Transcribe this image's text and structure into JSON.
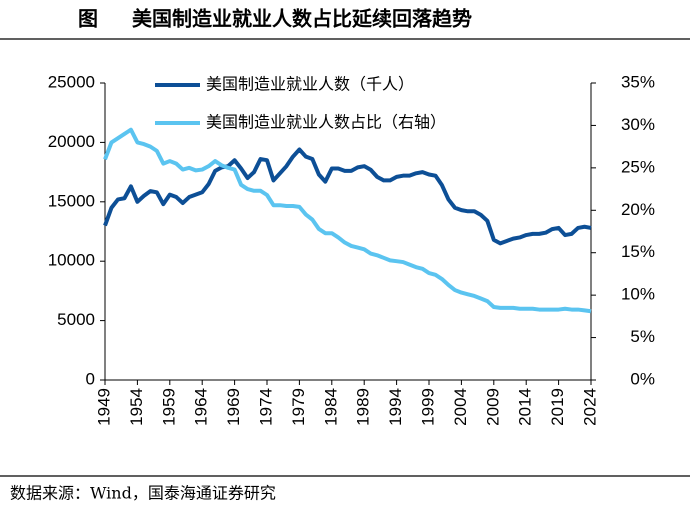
{
  "chart_data": {
    "type": "line",
    "figure_label": "图",
    "title": "美国制造业就业人数占比延续回落趋势",
    "source": "数据来源：Wind，国泰海通证券研究",
    "x": [
      1949,
      1950,
      1951,
      1952,
      1953,
      1954,
      1955,
      1956,
      1957,
      1958,
      1959,
      1960,
      1961,
      1962,
      1963,
      1964,
      1965,
      1966,
      1967,
      1968,
      1969,
      1970,
      1971,
      1972,
      1973,
      1974,
      1975,
      1976,
      1977,
      1978,
      1979,
      1980,
      1981,
      1982,
      1983,
      1984,
      1985,
      1986,
      1987,
      1988,
      1989,
      1990,
      1991,
      1992,
      1993,
      1994,
      1995,
      1996,
      1997,
      1998,
      1999,
      2000,
      2001,
      2002,
      2003,
      2004,
      2005,
      2006,
      2007,
      2008,
      2009,
      2010,
      2011,
      2012,
      2013,
      2014,
      2015,
      2016,
      2017,
      2018,
      2019,
      2020,
      2021,
      2022,
      2023,
      2024
    ],
    "xlim": [
      1949,
      2024
    ],
    "xticks": [
      1949,
      1954,
      1959,
      1964,
      1969,
      1974,
      1979,
      1984,
      1989,
      1994,
      1999,
      2004,
      2009,
      2014,
      2019,
      2024
    ],
    "ylim": [
      0,
      25000
    ],
    "yticks": [
      0,
      5000,
      10000,
      15000,
      20000,
      25000
    ],
    "y2lim": [
      0,
      35
    ],
    "y2ticks": [
      {
        "value": 0,
        "label": "0%"
      },
      {
        "value": 5,
        "label": "5%"
      },
      {
        "value": 10,
        "label": "10%"
      },
      {
        "value": 15,
        "label": "15%"
      },
      {
        "value": 20,
        "label": "20%"
      },
      {
        "value": 25,
        "label": "25%"
      },
      {
        "value": 30,
        "label": "30%"
      },
      {
        "value": 35,
        "label": "35%"
      }
    ],
    "legend": "upper-left",
    "series": [
      {
        "name": "美国制造业就业人数（千人）",
        "color": "#0d4f96",
        "values": [
          13000,
          14500,
          15200,
          15300,
          16300,
          15000,
          15500,
          15900,
          15800,
          14800,
          15600,
          15400,
          14900,
          15400,
          15600,
          15800,
          16500,
          17600,
          17900,
          18000,
          18500,
          17800,
          17000,
          17500,
          18600,
          18500,
          16800,
          17400,
          18000,
          18800,
          19400,
          18800,
          18600,
          17300,
          16700,
          17800,
          17800,
          17600,
          17600,
          17900,
          18000,
          17700,
          17100,
          16800,
          16800,
          17100,
          17200,
          17200,
          17400,
          17500,
          17300,
          17200,
          16400,
          15200,
          14500,
          14300,
          14200,
          14200,
          13900,
          13400,
          11800,
          11500,
          11700,
          11900,
          12000,
          12200,
          12300,
          12300,
          12400,
          12700,
          12800,
          12200,
          12300,
          12800,
          12900,
          12800
        ]
      },
      {
        "name": "美国制造业就业人数占比（右轴）",
        "color": "#5bc4f0",
        "axis": "y2",
        "values": [
          26,
          28,
          28.5,
          29,
          29.5,
          28,
          27.8,
          27.5,
          27,
          25.5,
          25.8,
          25.5,
          24.8,
          25,
          24.7,
          24.8,
          25.2,
          25.8,
          25.3,
          25,
          24.8,
          23,
          22.5,
          22.3,
          22.3,
          21.8,
          20.6,
          20.6,
          20.5,
          20.5,
          20.4,
          19.5,
          18.9,
          17.8,
          17.3,
          17.3,
          16.8,
          16.2,
          15.8,
          15.6,
          15.4,
          14.9,
          14.7,
          14.4,
          14.1,
          14,
          13.9,
          13.6,
          13.3,
          13.1,
          12.6,
          12.4,
          11.9,
          11.2,
          10.6,
          10.3,
          10.1,
          9.9,
          9.6,
          9.3,
          8.6,
          8.5,
          8.5,
          8.5,
          8.4,
          8.4,
          8.4,
          8.3,
          8.3,
          8.3,
          8.3,
          8.4,
          8.3,
          8.3,
          8.2,
          8.1
        ]
      }
    ]
  }
}
